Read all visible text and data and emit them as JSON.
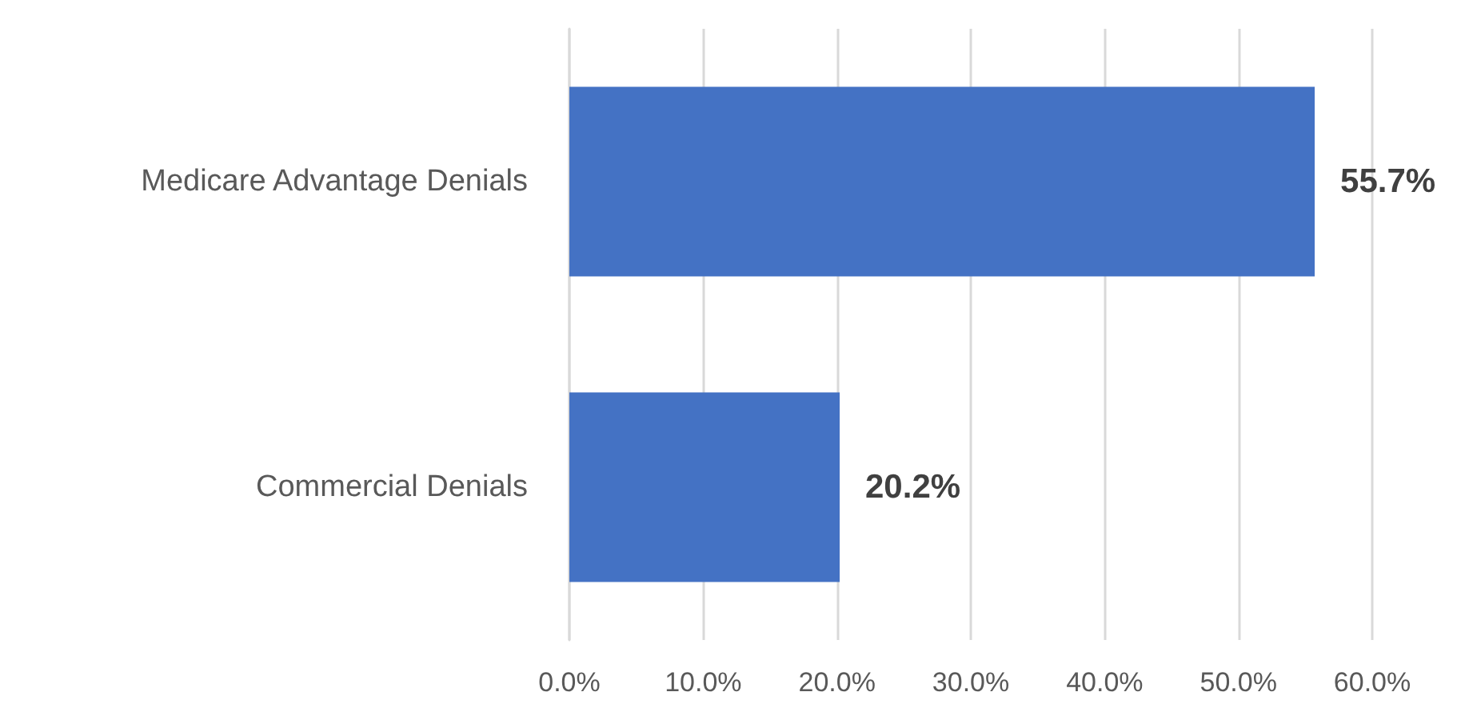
{
  "chart_data": {
    "type": "bar",
    "orientation": "horizontal",
    "categories": [
      "Medicare Advantage Denials",
      "Commercial Denials"
    ],
    "series": [
      {
        "color": "#4472c4",
        "values": [
          55.7,
          20.2
        ],
        "value_labels": [
          "55.7%",
          "20.2%"
        ]
      }
    ],
    "xlim": [
      0,
      60
    ],
    "xticks": [
      {
        "value": 0,
        "label": "0.0%"
      },
      {
        "value": 10,
        "label": "10.0%"
      },
      {
        "value": 20,
        "label": "20.0%"
      },
      {
        "value": 30,
        "label": "30.0%"
      },
      {
        "value": 40,
        "label": "40.0%"
      },
      {
        "value": 50,
        "label": "50.0%"
      },
      {
        "value": 60,
        "label": "60.0%"
      }
    ],
    "grid": "x"
  }
}
